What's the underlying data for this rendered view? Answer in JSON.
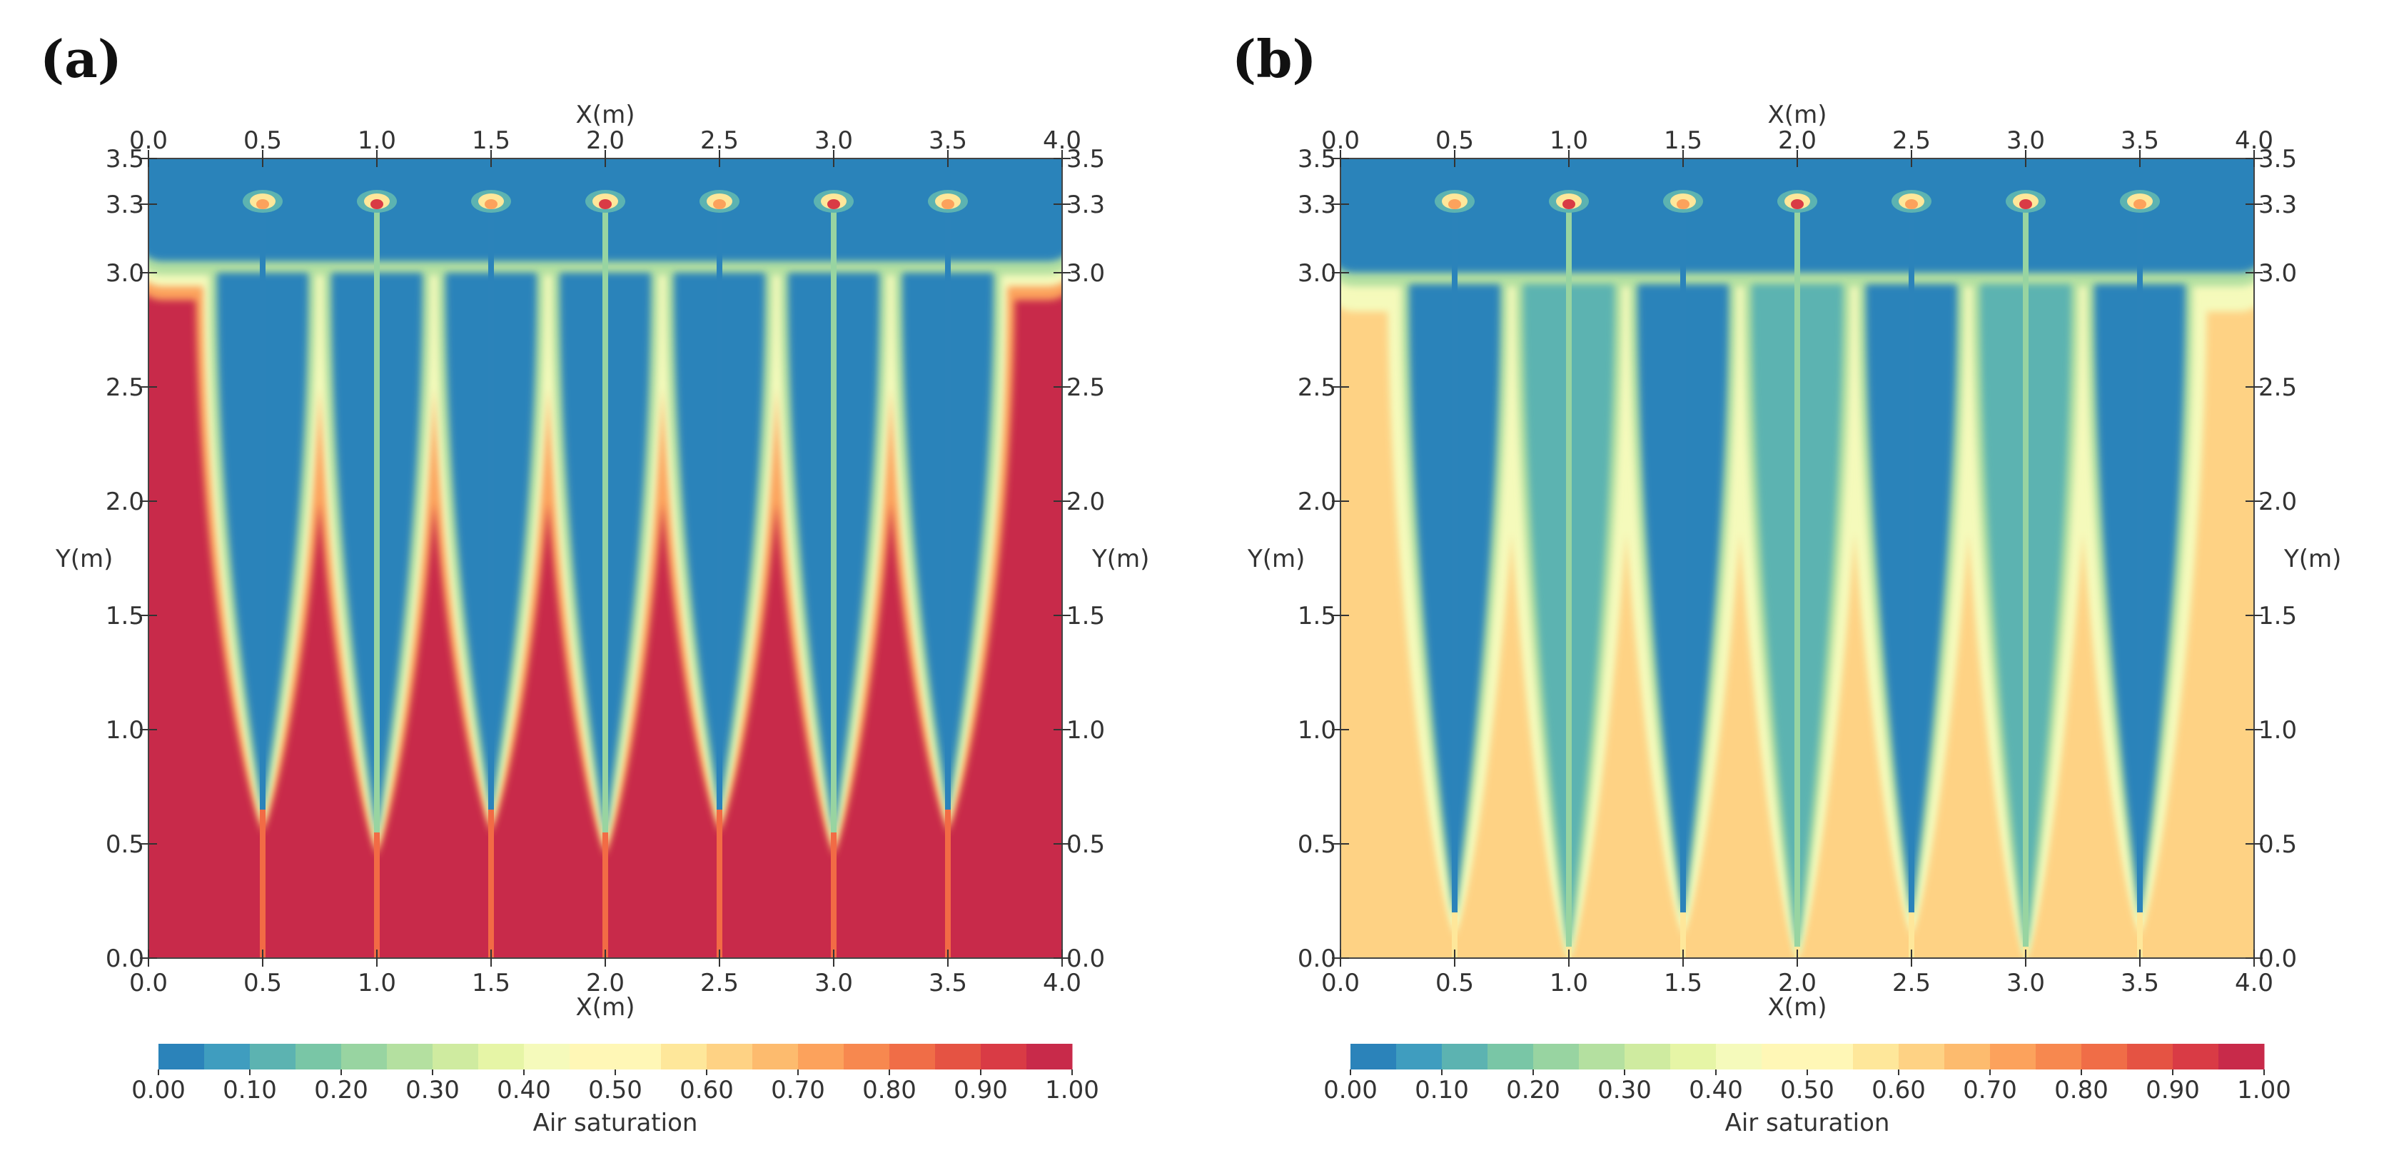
{
  "panels": [
    {
      "label": "(a)",
      "chart_data": {
        "type": "heatmap",
        "title": "",
        "xlabel": "X(m)",
        "ylabel": "Y(m)",
        "xlim": [
          0.0,
          4.0
        ],
        "ylim": [
          0.0,
          3.5
        ],
        "xticks": [
          "0.0",
          "0.5",
          "1.0",
          "1.5",
          "2.0",
          "2.5",
          "3.0",
          "3.5",
          "4.0"
        ],
        "yticks": [
          "0.0",
          "0.5",
          "1.0",
          "1.5",
          "2.0",
          "2.5",
          "3.0",
          "3.3",
          "3.5"
        ],
        "colorbar": {
          "label": "Air saturation",
          "range": [
            0.0,
            1.0
          ],
          "ticks": [
            "0.00",
            "0.10",
            "0.20",
            "0.30",
            "0.40",
            "0.50",
            "0.60",
            "0.70",
            "0.80",
            "0.90",
            "1.00"
          ]
        },
        "background_saturation": 0.95,
        "top_layer": {
          "y_from": 3.05,
          "saturation": 0.02
        },
        "plumes": [
          {
            "x": 0.5,
            "tip_y": 0.65,
            "core_saturation": 0.0,
            "pipe_saturation": 0.02
          },
          {
            "x": 1.0,
            "tip_y": 0.55,
            "core_saturation": 0.0,
            "pipe_saturation": 0.2
          },
          {
            "x": 1.5,
            "tip_y": 0.65,
            "core_saturation": 0.0,
            "pipe_saturation": 0.02
          },
          {
            "x": 2.0,
            "tip_y": 0.55,
            "core_saturation": 0.0,
            "pipe_saturation": 0.2
          },
          {
            "x": 2.5,
            "tip_y": 0.65,
            "core_saturation": 0.0,
            "pipe_saturation": 0.02
          },
          {
            "x": 3.0,
            "tip_y": 0.55,
            "core_saturation": 0.0,
            "pipe_saturation": 0.2
          },
          {
            "x": 3.5,
            "tip_y": 0.65,
            "core_saturation": 0.0,
            "pipe_saturation": 0.02
          }
        ],
        "nozzle_y": 3.3
      }
    },
    {
      "label": "(b)",
      "chart_data": {
        "type": "heatmap",
        "title": "",
        "xlabel": "X(m)",
        "ylabel": "Y(m)",
        "xlim": [
          0.0,
          4.0
        ],
        "ylim": [
          0.0,
          3.5
        ],
        "xticks": [
          "0.0",
          "0.5",
          "1.0",
          "1.5",
          "2.0",
          "2.5",
          "3.0",
          "3.5",
          "4.0"
        ],
        "yticks": [
          "0.0",
          "0.5",
          "1.0",
          "1.5",
          "2.0",
          "2.5",
          "3.0",
          "3.3",
          "3.5"
        ],
        "colorbar": {
          "label": "Air saturation",
          "range": [
            0.0,
            1.0
          ],
          "ticks": [
            "0.00",
            "0.10",
            "0.20",
            "0.30",
            "0.40",
            "0.50",
            "0.60",
            "0.70",
            "0.80",
            "0.90",
            "1.00"
          ]
        },
        "background_saturation": 0.6,
        "top_layer": {
          "y_from": 3.0,
          "saturation": 0.02
        },
        "plumes": [
          {
            "x": 0.5,
            "tip_y": 0.2,
            "core_saturation": 0.0,
            "pipe_saturation": 0.02
          },
          {
            "x": 1.0,
            "tip_y": 0.05,
            "core_saturation": 0.15,
            "pipe_saturation": 0.2
          },
          {
            "x": 1.5,
            "tip_y": 0.2,
            "core_saturation": 0.05,
            "pipe_saturation": 0.02
          },
          {
            "x": 2.0,
            "tip_y": 0.05,
            "core_saturation": 0.15,
            "pipe_saturation": 0.2
          },
          {
            "x": 2.5,
            "tip_y": 0.2,
            "core_saturation": 0.05,
            "pipe_saturation": 0.02
          },
          {
            "x": 3.0,
            "tip_y": 0.05,
            "core_saturation": 0.15,
            "pipe_saturation": 0.2
          },
          {
            "x": 3.5,
            "tip_y": 0.2,
            "core_saturation": 0.0,
            "pipe_saturation": 0.02
          }
        ],
        "nozzle_y": 3.3
      }
    }
  ],
  "colormap": [
    "#2b83ba",
    "#3f9dbf",
    "#5cb3b1",
    "#79c6a6",
    "#98d4a1",
    "#b4e0a0",
    "#cfeba0",
    "#e6f5a6",
    "#f5fabb",
    "#fff7b6",
    "#fee79a",
    "#fed284",
    "#fdbb6e",
    "#fca25c",
    "#f7884f",
    "#f06d47",
    "#e55343",
    "#d93b45",
    "#c82a4a"
  ]
}
